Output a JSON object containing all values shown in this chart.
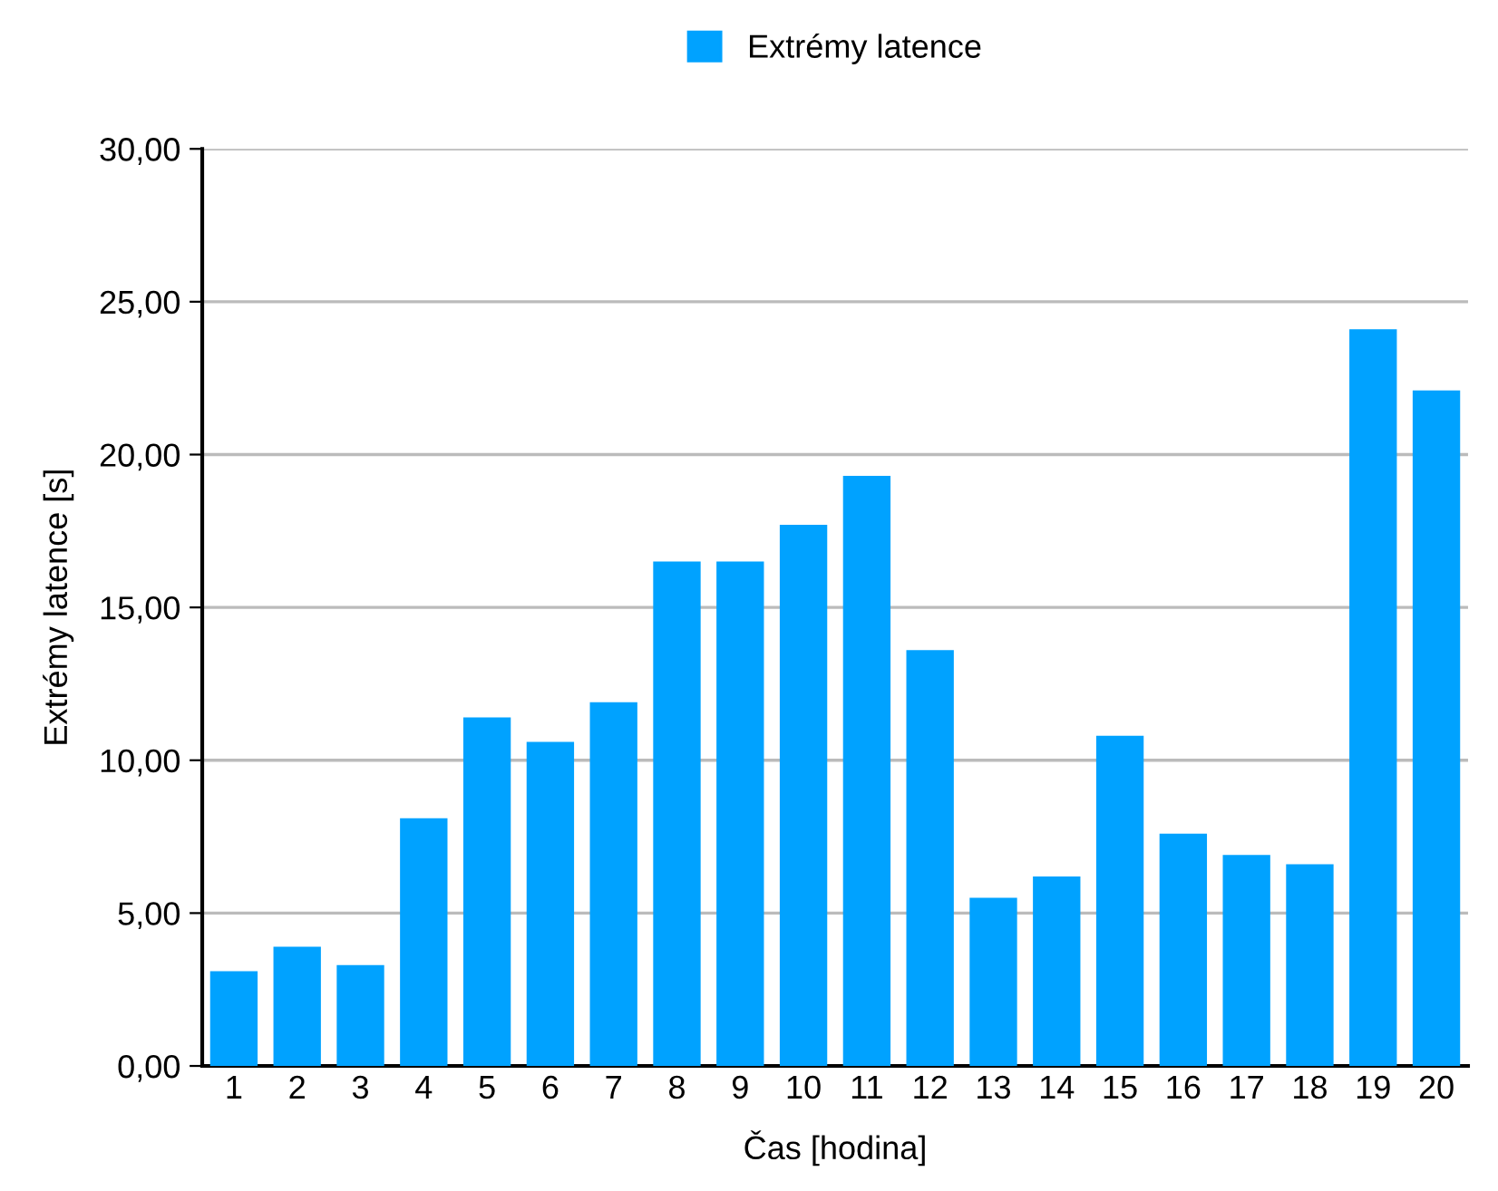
{
  "chart_data": {
    "type": "bar",
    "xlabel": "Čas [hodina]",
    "ylabel": "Extrémy latence [s]",
    "categories": [
      "1",
      "2",
      "3",
      "4",
      "5",
      "6",
      "7",
      "8",
      "9",
      "10",
      "11",
      "12",
      "13",
      "14",
      "15",
      "16",
      "17",
      "18",
      "19",
      "20"
    ],
    "series": [
      {
        "name": "Extrémy latence",
        "color": "#00a2ff",
        "values": [
          3.1,
          3.9,
          3.3,
          8.1,
          11.4,
          10.6,
          11.9,
          16.5,
          16.5,
          17.7,
          19.3,
          13.6,
          5.5,
          6.2,
          10.8,
          7.6,
          6.9,
          6.6,
          24.1,
          22.1
        ]
      }
    ],
    "ylim": [
      0,
      30
    ],
    "yticks": [
      {
        "value": 0,
        "label": "0,00"
      },
      {
        "value": 5,
        "label": "5,00"
      },
      {
        "value": 10,
        "label": "10,00"
      },
      {
        "value": 15,
        "label": "15,00"
      },
      {
        "value": 20,
        "label": "20,00"
      },
      {
        "value": 25,
        "label": "25,00"
      },
      {
        "value": 30,
        "label": "30,00"
      }
    ],
    "grid": "y",
    "legend": "top"
  }
}
